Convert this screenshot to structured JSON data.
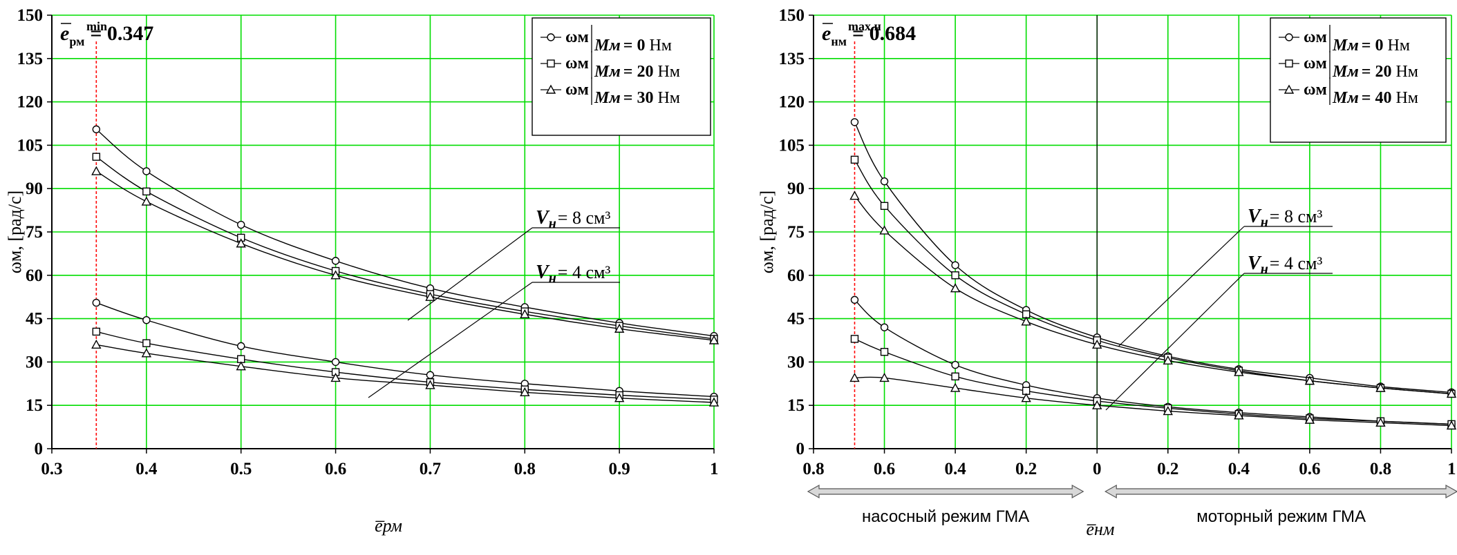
{
  "chart_data": [
    {
      "type": "line",
      "title": "",
      "xlabel": "e̅рм",
      "ylabel": "ωм, [рад/с]",
      "xlim": [
        0.3,
        1.0
      ],
      "ylim": [
        0,
        150
      ],
      "x_ticks": [
        "0.3",
        "0.4",
        "0.5",
        "0.6",
        "0.7",
        "0.8",
        "0.9",
        "1"
      ],
      "y_ticks": [
        "0",
        "15",
        "30",
        "45",
        "60",
        "75",
        "90",
        "105",
        "120",
        "135",
        "150"
      ],
      "grid": true,
      "grid_color": "#00dd00",
      "legend_position": "top-right",
      "marker_annotation": {
        "symbol": "e",
        "sub": "рм",
        "sup": "min",
        "value": "= 0.347",
        "x": 0.347,
        "color": "#ff0000"
      },
      "legend": [
        {
          "marker": "circle",
          "omega": "ωм",
          "moment": "Mм",
          "equals": "= 0",
          "unit": "Нм"
        },
        {
          "marker": "square",
          "omega": "ωм",
          "moment": "Mм",
          "equals": "= 20",
          "unit": "Нм"
        },
        {
          "marker": "triangle",
          "omega": "ωм",
          "moment": "Mм",
          "equals": "= 30",
          "unit": "Нм"
        }
      ],
      "annotations": [
        {
          "symbol": "V",
          "sub": "н",
          "text": "= 8 см³"
        },
        {
          "symbol": "V",
          "sub": "н",
          "text": "= 4 см³"
        }
      ],
      "x": [
        0.347,
        0.4,
        0.5,
        0.6,
        0.7,
        0.8,
        0.9,
        1.0
      ],
      "series": [
        {
          "group": "Vн=8",
          "marker": "circle",
          "values": [
            110.5,
            96,
            77.5,
            65,
            55.5,
            49,
            43.5,
            39
          ]
        },
        {
          "group": "Vн=8",
          "marker": "square",
          "values": [
            101,
            89,
            73,
            61.5,
            53.5,
            47.5,
            42.5,
            38
          ]
        },
        {
          "group": "Vн=8",
          "marker": "triangle",
          "values": [
            96,
            85.5,
            71,
            60,
            52.5,
            46.5,
            41.5,
            37.5
          ]
        },
        {
          "group": "Vн=4",
          "marker": "circle",
          "values": [
            50.5,
            44.5,
            35.5,
            30,
            25.5,
            22.5,
            20,
            18
          ]
        },
        {
          "group": "Vн=4",
          "marker": "square",
          "values": [
            40.5,
            36.5,
            31,
            26.5,
            23,
            20.5,
            18.5,
            17
          ]
        },
        {
          "group": "Vн=4",
          "marker": "triangle",
          "values": [
            36,
            33,
            28.5,
            24.5,
            22,
            19.5,
            17.5,
            16
          ]
        }
      ]
    },
    {
      "type": "line",
      "title": "",
      "xlabel": "e̅нм",
      "ylabel": "ωм, [рад/с]",
      "xlim": [
        -0.8,
        1.0
      ],
      "ylim": [
        0,
        150
      ],
      "x_ticks": [
        "0.8",
        "0.6",
        "0.4",
        "0.2",
        "0",
        "0.2",
        "0.4",
        "0.6",
        "0.8",
        "1"
      ],
      "y_ticks": [
        "0",
        "15",
        "30",
        "45",
        "60",
        "75",
        "90",
        "105",
        "120",
        "135",
        "150"
      ],
      "grid": true,
      "grid_color": "#00dd00",
      "legend_position": "top-right",
      "marker_annotation": {
        "symbol": "e",
        "sub": "нм",
        "sup": "max.н",
        "value": "= 0.684",
        "x": -0.684,
        "color": "#ff0000"
      },
      "legend": [
        {
          "marker": "circle",
          "omega": "ωм",
          "moment": "Mм",
          "equals": "= 0",
          "unit": "Нм"
        },
        {
          "marker": "square",
          "omega": "ωм",
          "moment": "Mм",
          "equals": "= 20",
          "unit": "Нм"
        },
        {
          "marker": "triangle",
          "omega": "ωм",
          "moment": "Mм",
          "equals": "= 40",
          "unit": "Нм"
        }
      ],
      "annotations": [
        {
          "symbol": "V",
          "sub": "н",
          "text": "= 8 см³"
        },
        {
          "symbol": "V",
          "sub": "н",
          "text": "= 4 см³"
        }
      ],
      "regions": [
        {
          "label": "насосный режим ГМА",
          "from": -0.8,
          "to": 0
        },
        {
          "label": "моторный режим ГМА",
          "from": 0,
          "to": 1.0
        }
      ],
      "x": [
        -0.684,
        -0.6,
        -0.4,
        -0.2,
        0.0,
        0.2,
        0.4,
        0.6,
        0.8,
        1.0
      ],
      "series": [
        {
          "group": "Vн=8",
          "marker": "circle",
          "values": [
            113,
            92.5,
            63.5,
            48,
            38.5,
            32,
            27.5,
            24.5,
            21.5,
            19.5
          ]
        },
        {
          "group": "Vн=8",
          "marker": "square",
          "values": [
            100,
            84,
            60,
            46.5,
            37.5,
            31.5,
            27,
            23.5,
            21,
            19
          ]
        },
        {
          "group": "Vн=8",
          "marker": "triangle",
          "values": [
            87.5,
            75.5,
            55.5,
            44,
            36,
            30.5,
            26.5,
            23.5,
            21,
            19
          ]
        },
        {
          "group": "Vн=4",
          "marker": "circle",
          "values": [
            51.5,
            42,
            29,
            22,
            17.5,
            14.5,
            12.5,
            11,
            9.5,
            8.5
          ]
        },
        {
          "group": "Vн=4",
          "marker": "square",
          "values": [
            38,
            33.5,
            25,
            20,
            16.5,
            14,
            12,
            10.5,
            9.5,
            8.5
          ]
        },
        {
          "group": "Vн=4",
          "marker": "triangle",
          "values": [
            24.5,
            24.5,
            21,
            17.5,
            15,
            13,
            11.5,
            10,
            9,
            8
          ]
        }
      ]
    }
  ]
}
